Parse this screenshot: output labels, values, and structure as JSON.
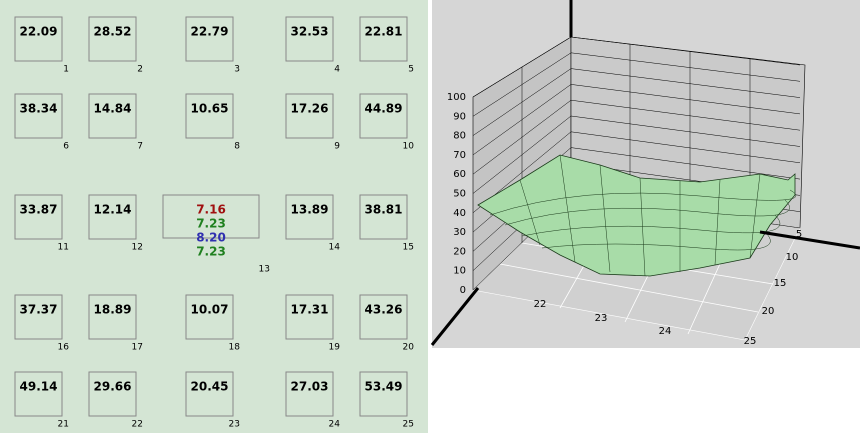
{
  "cells": [
    {
      "value": "22.09",
      "index": 1
    },
    {
      "value": "28.52",
      "index": 2
    },
    {
      "value": "22.79",
      "index": 3
    },
    {
      "value": "32.53",
      "index": 4
    },
    {
      "value": "22.81",
      "index": 5
    },
    {
      "value": "38.34",
      "index": 6
    },
    {
      "value": "14.84",
      "index": 7
    },
    {
      "value": "10.65",
      "index": 8
    },
    {
      "value": "17.26",
      "index": 9
    },
    {
      "value": "44.89",
      "index": 10
    },
    {
      "value": "33.87",
      "index": 11
    },
    {
      "value": "12.14",
      "index": 12
    },
    {
      "values": [
        "7.16",
        "7.23",
        "8.20",
        "7.23"
      ],
      "colors": [
        "#a01010",
        "#208020",
        "#3030b0",
        "#208020"
      ],
      "index": 13
    },
    {
      "value": "13.89",
      "index": 14
    },
    {
      "value": "38.81",
      "index": 15
    },
    {
      "value": "37.37",
      "index": 16
    },
    {
      "value": "18.89",
      "index": 17
    },
    {
      "value": "10.07",
      "index": 18
    },
    {
      "value": "17.31",
      "index": 19
    },
    {
      "value": "43.26",
      "index": 20
    },
    {
      "value": "49.14",
      "index": 21
    },
    {
      "value": "29.66",
      "index": 22
    },
    {
      "value": "20.45",
      "index": 23
    },
    {
      "value": "27.03",
      "index": 24
    },
    {
      "value": "53.49",
      "index": 25
    }
  ],
  "plot3d": {
    "zlim": [
      0,
      100
    ],
    "zticks": [
      0,
      10,
      20,
      30,
      40,
      50,
      60,
      70,
      80,
      90,
      100
    ],
    "xticks": [
      22,
      23,
      24
    ],
    "yticks": [
      5,
      10,
      15,
      20,
      25
    ],
    "surface_color": "#a8dca8"
  }
}
